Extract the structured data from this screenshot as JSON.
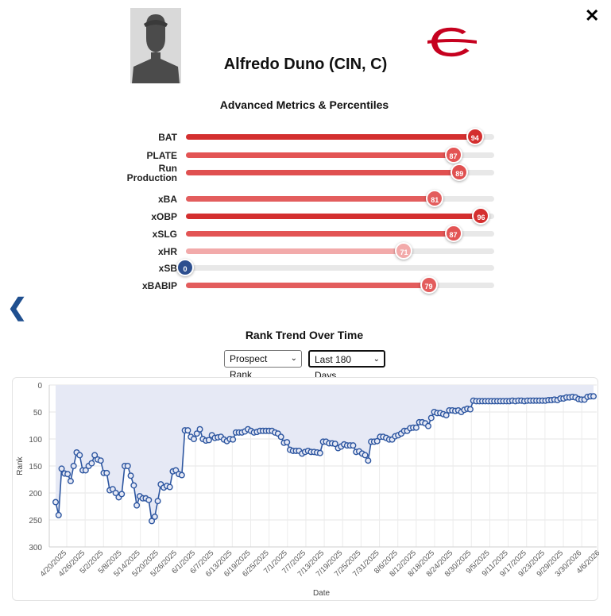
{
  "modal": {
    "close_icon": "close-icon",
    "back_icon": "chevron-left-icon"
  },
  "player": {
    "name": "Alfredo Duno (CIN, C)",
    "headshot_icon": "player-silhouette-icon",
    "team_logo_icon": "reds-c-logo-icon",
    "team_color": "#c6011f"
  },
  "metrics_section": {
    "title": "Advanced Metrics & Percentiles",
    "metrics": [
      {
        "label": "BAT",
        "value": 94,
        "color": "#d42f2f"
      },
      {
        "label": "PLATE",
        "value": 87,
        "color": "#e35454"
      },
      {
        "label": "Run\nProduction",
        "label_line1": "Run",
        "label_line2": "Production",
        "value": 89,
        "color": "#e05050"
      },
      {
        "label": "xBA",
        "value": 81,
        "color": "#e35d5d"
      },
      {
        "label": "xOBP",
        "value": 96,
        "color": "#d42f2f"
      },
      {
        "label": "xSLG",
        "value": 87,
        "color": "#e35454"
      },
      {
        "label": "xHR",
        "value": 71,
        "color": "#f2aaaa"
      },
      {
        "label": "xSB",
        "value": 0,
        "color": "#2d4f8f"
      },
      {
        "label": "xBABIP",
        "value": 79,
        "color": "#e35d5d"
      }
    ]
  },
  "trend_section": {
    "title": "Rank Trend Over Time",
    "metric_select": "Prospect Rank",
    "range_select": "Last 180 Days"
  },
  "chart_data": {
    "type": "line",
    "xlabel": "Date",
    "ylabel": "Rank",
    "y_reversed": true,
    "ylim": [
      0,
      300
    ],
    "yticks": [
      0,
      50,
      100,
      150,
      200,
      250,
      300
    ],
    "xtick_labels": [
      "4/20/2025",
      "4/26/2025",
      "5/2/2025",
      "5/8/2025",
      "5/14/2025",
      "5/20/2025",
      "5/26/2025",
      "6/1/2025",
      "6/7/2025",
      "6/13/2025",
      "6/19/2025",
      "6/25/2025",
      "7/1/2025",
      "7/7/2025",
      "7/13/2025",
      "7/19/2025",
      "7/25/2025",
      "7/31/2025",
      "8/6/2025",
      "8/12/2025",
      "8/18/2025",
      "8/24/2025",
      "8/30/2025",
      "9/5/2025",
      "9/11/2025",
      "9/17/2025",
      "9/23/2025",
      "9/29/2025",
      "3/30/2026",
      "4/6/2026"
    ],
    "grid": true,
    "series": [
      {
        "color": "#2d56a0",
        "fill": "#e6e9f5",
        "values": [
          217,
          241,
          155,
          164,
          165,
          178,
          150,
          125,
          130,
          158,
          158,
          150,
          145,
          130,
          138,
          140,
          163,
          163,
          195,
          193,
          200,
          208,
          202,
          150,
          150,
          168,
          186,
          223,
          206,
          210,
          210,
          213,
          252,
          244,
          215,
          184,
          190,
          187,
          189,
          160,
          158,
          165,
          167,
          84,
          84,
          96,
          100,
          90,
          82,
          100,
          103,
          102,
          93,
          98,
          97,
          96,
          101,
          104,
          100,
          101,
          88,
          88,
          88,
          86,
          82,
          85,
          88,
          87,
          85,
          85,
          85,
          85,
          85,
          88,
          90,
          96,
          107,
          106,
          120,
          122,
          122,
          122,
          127,
          124,
          122,
          124,
          124,
          125,
          126,
          105,
          105,
          108,
          108,
          109,
          117,
          114,
          110,
          112,
          112,
          112,
          124,
          123,
          127,
          130,
          140,
          105,
          105,
          104,
          96,
          96,
          98,
          101,
          101,
          95,
          93,
          90,
          85,
          85,
          80,
          79,
          79,
          69,
          69,
          71,
          76,
          61,
          50,
          52,
          52,
          54,
          56,
          47,
          47,
          48,
          47,
          50,
          46,
          44,
          45,
          29,
          30,
          30,
          30,
          30,
          30,
          30,
          30,
          30,
          30,
          30,
          30,
          30,
          29,
          30,
          29,
          29,
          30,
          29,
          29,
          29,
          29,
          29,
          29,
          29,
          28,
          28,
          27,
          28,
          25,
          25,
          23,
          23,
          22,
          23,
          26,
          27,
          27,
          22,
          21,
          21
        ]
      }
    ]
  }
}
